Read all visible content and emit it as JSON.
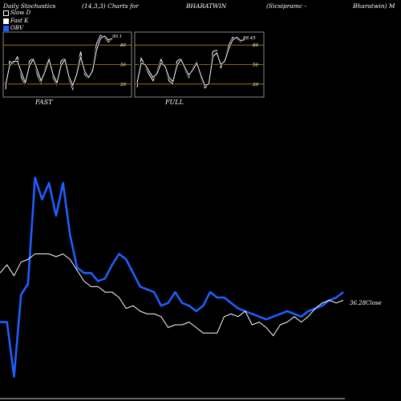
{
  "header": {
    "title": "Daily Stochastics",
    "params": "(14,3,3) Charts for",
    "symbol": "BHARATWIN",
    "company": "(Sicsipramc -",
    "company2": "Bharatwin) M"
  },
  "legend": [
    {
      "label": "Slow  D",
      "swatch": "hollow"
    },
    {
      "label": "Fast K",
      "swatch": "white"
    },
    {
      "label": "OBV",
      "swatch": "blue"
    }
  ],
  "panels": [
    {
      "label": "FAST",
      "value_label": "90.1"
    },
    {
      "label": "FULL",
      "value_label": "88.45"
    }
  ],
  "colors": {
    "obv": "#1f5fff",
    "price": "#ffffff",
    "level": "#b8860b",
    "frame": "#888888"
  },
  "chart_data": {
    "type": "line",
    "panels": [
      {
        "name": "FAST",
        "ylim": [
          0,
          100
        ],
        "levels": [
          20,
          50,
          80
        ],
        "tick_labels": [
          "80",
          "50",
          "20"
        ],
        "series": [
          {
            "values": [
              12,
              55,
              52,
              62,
              30,
              18,
              55,
              60,
              35,
              20,
              45,
              62,
              30,
              18,
              55,
              60,
              28,
              12,
              40,
              70,
              35,
              28,
              45,
              82,
              95,
              92,
              85,
              90
            ]
          },
          {
            "values": [
              18,
              48,
              55,
              55,
              38,
              22,
              48,
              58,
              42,
              25,
              40,
              58,
              35,
              22,
              48,
              58,
              32,
              18,
              35,
              62,
              40,
              30,
              40,
              72,
              90,
              94,
              88,
              90
            ]
          }
        ]
      },
      {
        "name": "FULL",
        "ylim": [
          0,
          100
        ],
        "levels": [
          20,
          50,
          80
        ],
        "tick_labels": [
          "80",
          "50",
          "20"
        ],
        "series": [
          {
            "values": [
              15,
              60,
              48,
              35,
              25,
              40,
              58,
              45,
              25,
              20,
              55,
              60,
              42,
              30,
              45,
              55,
              30,
              14,
              20,
              70,
              72,
              45,
              58,
              80,
              92,
              90,
              85,
              88
            ]
          },
          {
            "values": [
              22,
              52,
              50,
              40,
              30,
              36,
              52,
              48,
              30,
              24,
              48,
              58,
              45,
              34,
              42,
              52,
              34,
              18,
              20,
              62,
              68,
              50,
              55,
              74,
              88,
              92,
              87,
              88
            ]
          }
        ]
      }
    ],
    "main": {
      "ylim": [
        0,
        100
      ],
      "value_label": "36.28",
      "value_suffix": "Close",
      "series": [
        {
          "name": "OBV",
          "values": [
            26,
            26,
            6,
            36,
            40,
            79,
            71,
            77,
            65,
            77,
            58,
            46,
            44,
            44,
            41,
            42,
            47,
            51,
            49,
            44,
            39,
            38,
            37,
            32,
            33,
            37,
            33,
            32,
            30,
            32,
            37,
            35,
            35,
            33,
            31,
            30,
            29,
            28,
            27,
            28,
            29,
            30,
            29,
            28,
            30,
            31,
            32,
            34,
            35,
            37
          ]
        },
        {
          "name": "Price",
          "values": [
            44,
            47,
            43,
            48,
            49,
            51,
            51,
            51,
            50,
            51,
            49,
            45,
            41,
            39,
            39,
            37,
            37,
            35,
            31,
            32,
            30,
            29,
            29,
            28,
            24,
            25,
            25,
            26,
            24,
            22,
            22,
            22,
            28,
            29,
            28,
            30,
            25,
            26,
            24,
            21,
            25,
            26,
            28,
            26,
            28,
            31,
            33,
            34,
            33,
            34
          ]
        }
      ]
    }
  }
}
